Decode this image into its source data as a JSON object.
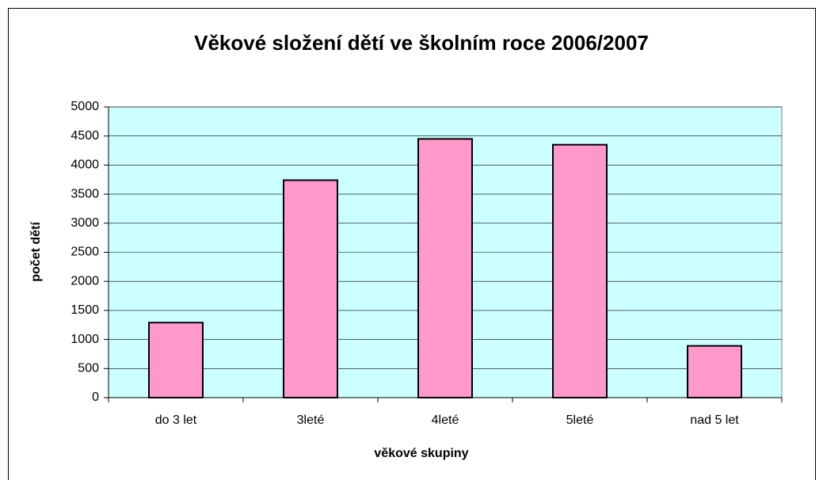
{
  "chart_data": {
    "type": "bar",
    "title": "Věkové složení dětí ve školním roce  2006/2007",
    "x_label": "věkové skupiny",
    "y_label": "počet dětí",
    "categories": [
      "do 3 let",
      "3leté",
      "4leté",
      "5leté",
      "nad 5 let"
    ],
    "values": [
      1290,
      3740,
      4450,
      4350,
      890
    ],
    "color": "#ff99cc",
    "ylim": [
      0,
      5000
    ],
    "yticks": [
      0,
      500,
      1000,
      1500,
      2000,
      2500,
      3000,
      3500,
      4000,
      4500,
      5000
    ],
    "grid": true
  }
}
